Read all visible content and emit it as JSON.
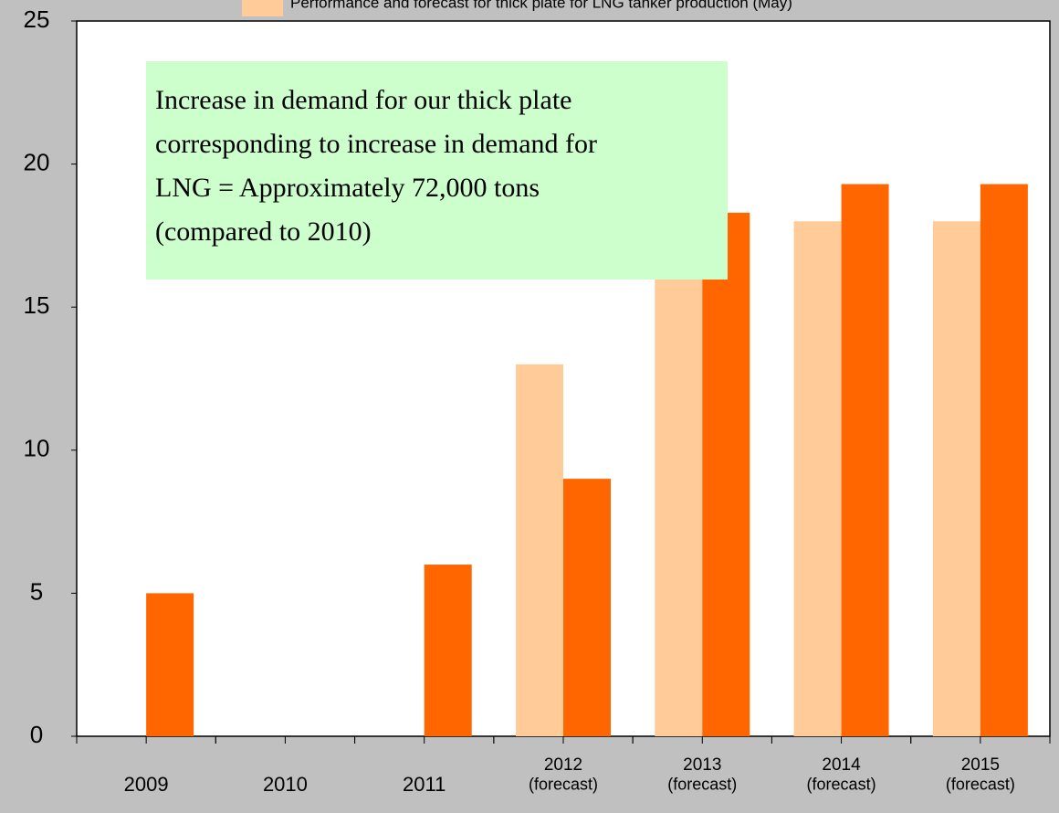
{
  "chart_data": {
    "type": "bar",
    "categories": [
      "2009",
      "2010",
      "2011",
      "2012\n(forecast)",
      "2013\n(forecast)",
      "2014\n(forecast)",
      "2015\n(forecast)"
    ],
    "series": [
      {
        "name": "Performance and forecast for thick plate for LNG tanker production  (May)",
        "color": "#ffcc99",
        "values": [
          null,
          null,
          null,
          13,
          18,
          18,
          18
        ]
      },
      {
        "color": "#ff6600",
        "values": [
          5,
          null,
          6,
          9,
          18.3,
          19.3,
          19.3
        ]
      }
    ],
    "ylim": [
      0,
      25
    ],
    "yticks": [
      0,
      5,
      10,
      15,
      20,
      25
    ],
    "grid": false,
    "annotation": [
      "Increase in demand for our thick plate",
      "corresponding to increase in demand for",
      "LNG = Approximately 72,000 tons",
      "(compared to 2010)"
    ]
  }
}
